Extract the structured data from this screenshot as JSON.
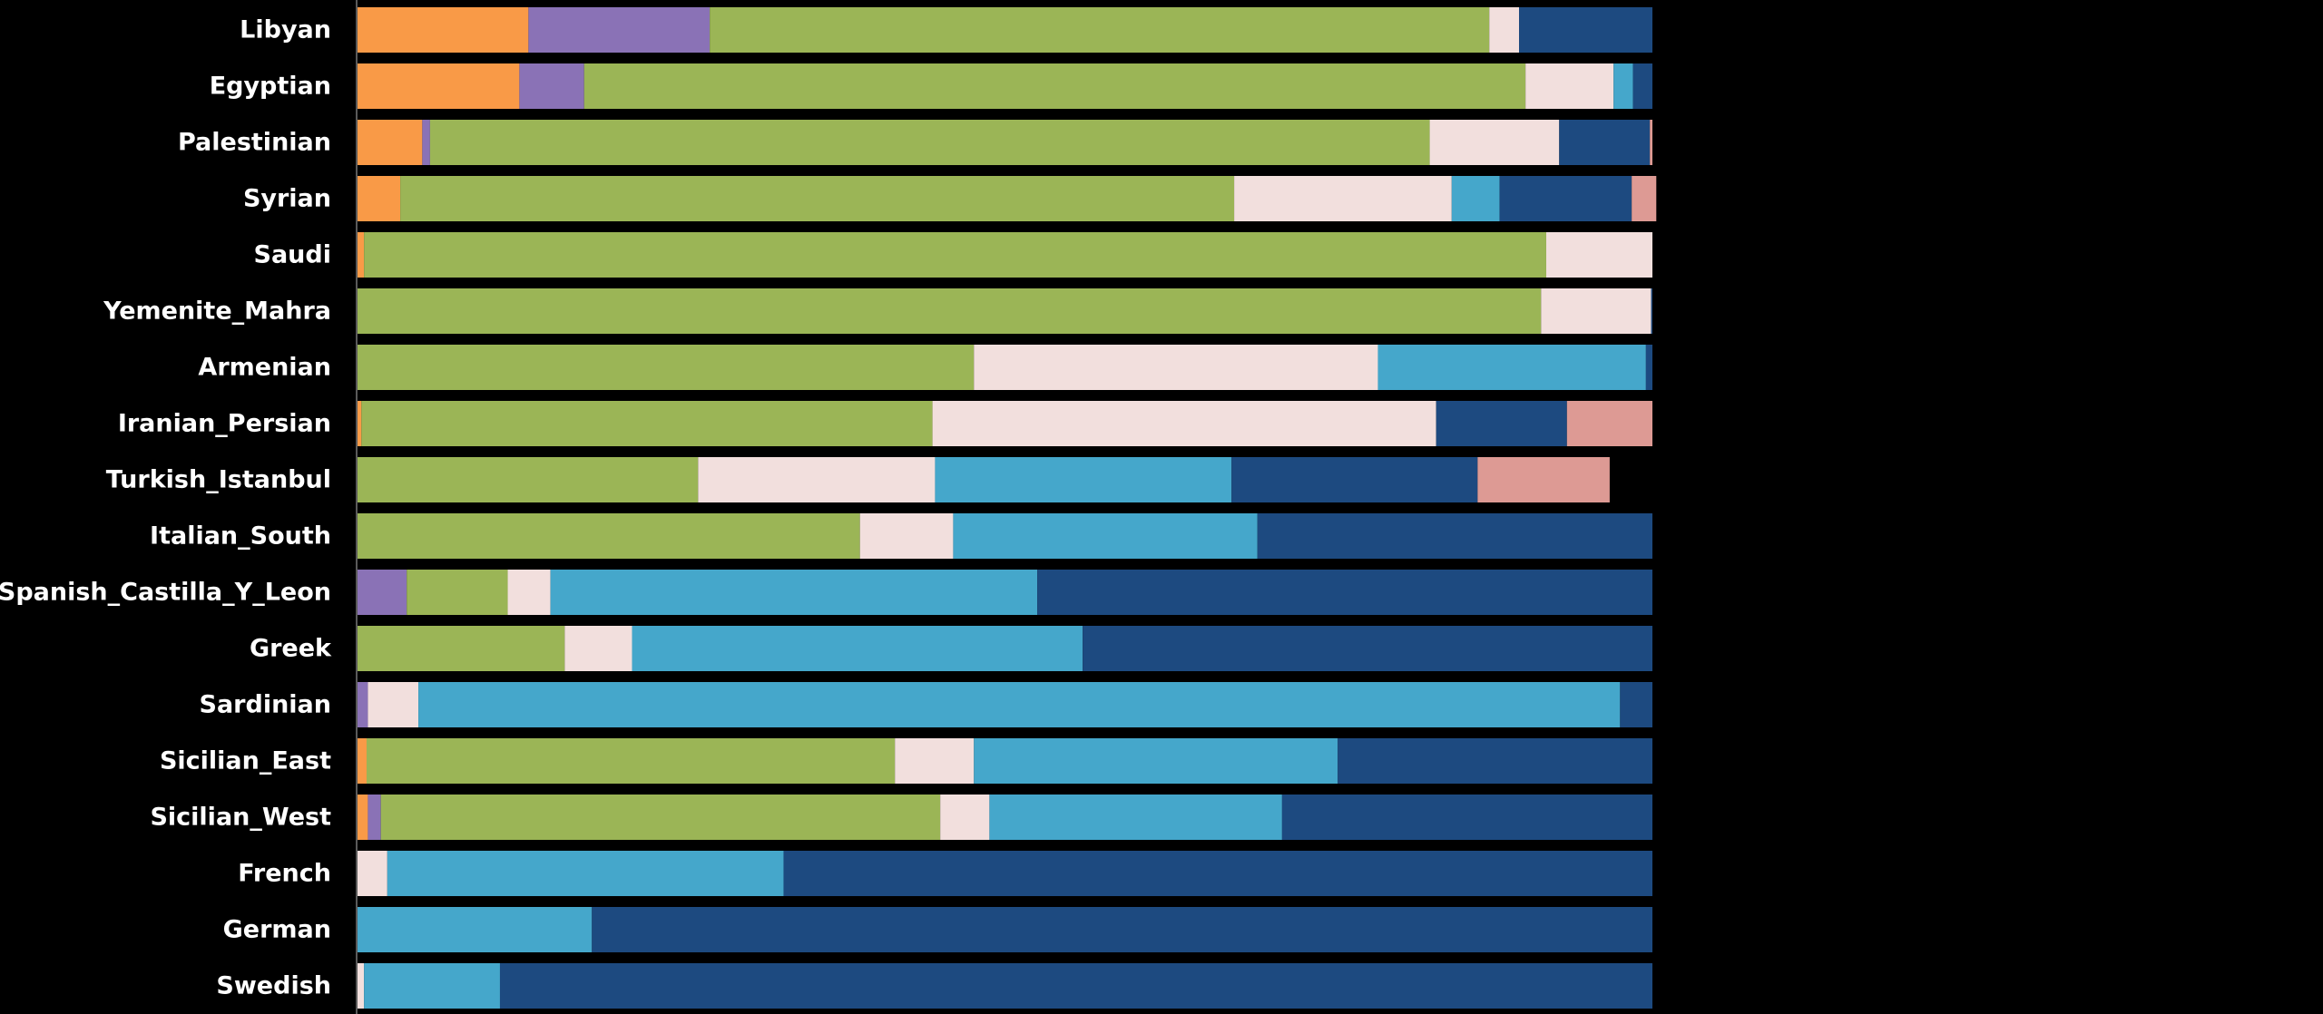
{
  "chart_data": {
    "type": "bar",
    "orientation": "horizontal",
    "stacked": true,
    "normalized": true,
    "title": "",
    "xlabel": "",
    "ylabel": "",
    "xlim": [
      0,
      100
    ],
    "legend": "none",
    "grid": false,
    "categories": [
      "Libyan",
      "Egyptian",
      "Palestinian",
      "Syrian",
      "Saudi",
      "Yemenite_Mahra",
      "Armenian",
      "Iranian_Persian",
      "Turkish_Istanbul",
      "Italian_South",
      "Spanish_Castilla_Y_Leon",
      "Greek",
      "Sardinian",
      "Sicilian_East",
      "Sicilian_West",
      "French",
      "German",
      "Swedish"
    ],
    "series": [
      {
        "color": "#f99a47",
        "values": [
          13.2,
          12.5,
          5.0,
          3.3,
          0.5,
          0.0,
          0.0,
          0.3,
          0.0,
          0.0,
          0.0,
          0.0,
          0.0,
          0.7,
          0.8,
          0.0,
          0.0,
          0.0
        ]
      },
      {
        "color": "#8a72b6",
        "values": [
          14.0,
          5.0,
          0.6,
          0.0,
          0.0,
          0.0,
          0.0,
          0.0,
          0.0,
          0.0,
          3.8,
          0.0,
          0.8,
          0.0,
          1.0,
          0.0,
          0.0,
          0.0
        ]
      },
      {
        "color": "#9bb556",
        "values": [
          60.2,
          72.7,
          77.2,
          64.4,
          91.3,
          91.4,
          47.6,
          44.1,
          26.3,
          38.8,
          7.8,
          16.0,
          0.0,
          40.8,
          43.2,
          0.0,
          0.0,
          0.0
        ]
      },
      {
        "color": "#f2dfdd",
        "values": [
          2.3,
          6.8,
          10.0,
          16.8,
          8.2,
          8.5,
          31.2,
          38.9,
          18.3,
          7.2,
          3.3,
          5.2,
          3.9,
          6.1,
          3.8,
          2.3,
          0.0,
          0.5
        ]
      },
      {
        "color": "#45a7cb",
        "values": [
          0.0,
          1.5,
          0.0,
          3.7,
          0.0,
          0.0,
          20.7,
          0.0,
          22.9,
          23.5,
          37.6,
          34.8,
          92.8,
          28.1,
          22.6,
          30.6,
          18.1,
          10.5
        ]
      },
      {
        "color": "#1d4a80",
        "values": [
          10.3,
          1.5,
          7.0,
          10.2,
          0.0,
          0.1,
          0.5,
          10.1,
          19.0,
          30.5,
          47.5,
          44.0,
          2.5,
          24.3,
          28.6,
          67.1,
          81.9,
          89.0
        ]
      },
      {
        "color": "#dd9a94",
        "values": [
          0.0,
          0.0,
          0.2,
          1.9,
          0.0,
          0.0,
          0.0,
          6.6,
          10.2,
          0.0,
          0.0,
          0.0,
          0.0,
          0.0,
          0.0,
          0.0,
          0.0,
          0.0
        ]
      }
    ]
  }
}
